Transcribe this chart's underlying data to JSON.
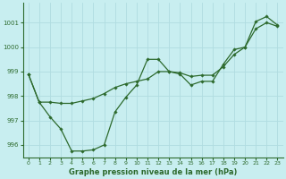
{
  "title": "Graphe pression niveau de la mer (hPa)",
  "background_color": "#c8eef0",
  "grid_color": "#b0dce0",
  "line_color": "#2d6a2d",
  "xlim": [
    -0.5,
    23.5
  ],
  "ylim": [
    995.5,
    1001.8
  ],
  "yticks": [
    996,
    997,
    998,
    999,
    1000,
    1001
  ],
  "xticks": [
    0,
    1,
    2,
    3,
    4,
    5,
    6,
    7,
    8,
    9,
    10,
    11,
    12,
    13,
    14,
    15,
    16,
    17,
    18,
    19,
    20,
    21,
    22,
    23
  ],
  "series1_x": [
    0,
    1,
    2,
    3,
    4,
    5,
    6,
    7,
    8,
    9,
    10,
    11,
    12,
    13,
    14,
    15,
    16,
    17,
    18,
    19,
    20,
    21,
    22,
    23
  ],
  "series1_y": [
    998.9,
    997.75,
    997.15,
    996.65,
    995.75,
    995.75,
    995.8,
    996.0,
    997.35,
    997.95,
    998.45,
    999.5,
    999.5,
    999.0,
    998.9,
    998.45,
    998.6,
    998.6,
    999.3,
    999.9,
    1000.0,
    1001.05,
    1001.25,
    1000.9
  ],
  "series2_x": [
    0,
    1,
    2,
    3,
    4,
    5,
    6,
    7,
    8,
    9,
    10,
    11,
    12,
    13,
    14,
    15,
    16,
    17,
    18,
    19,
    20,
    21,
    22,
    23
  ],
  "series2_y": [
    998.9,
    997.75,
    997.75,
    997.7,
    997.7,
    997.8,
    997.9,
    998.1,
    998.35,
    998.5,
    998.6,
    998.7,
    999.0,
    999.0,
    998.95,
    998.8,
    998.85,
    998.85,
    999.2,
    999.7,
    1000.0,
    1000.75,
    1001.0,
    1000.85
  ]
}
